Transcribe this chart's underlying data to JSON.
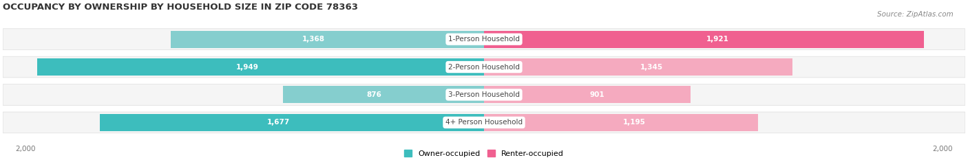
{
  "title": "OCCUPANCY BY OWNERSHIP BY HOUSEHOLD SIZE IN ZIP CODE 78363",
  "source": "Source: ZipAtlas.com",
  "categories": [
    "1-Person Household",
    "2-Person Household",
    "3-Person Household",
    "4+ Person Household"
  ],
  "owner_values": [
    1368,
    1949,
    876,
    1677
  ],
  "renter_values": [
    1921,
    1345,
    901,
    1195
  ],
  "max_val": 2000,
  "owner_color_dark": "#3DBDBD",
  "owner_color_light": "#85CECE",
  "renter_color_dark": "#F06090",
  "renter_color_light": "#F5AABF",
  "bar_bg_color": "#E8E8E8",
  "row_bg_color": "#F5F5F5",
  "title_fontsize": 9.5,
  "source_fontsize": 7.5,
  "label_fontsize": 7.5,
  "tick_fontsize": 7.5,
  "legend_fontsize": 8,
  "background_color": "#FFFFFF",
  "owner_dark_rows": [
    1,
    3
  ],
  "renter_dark_rows": [
    0,
    1
  ],
  "value_threshold": 400
}
